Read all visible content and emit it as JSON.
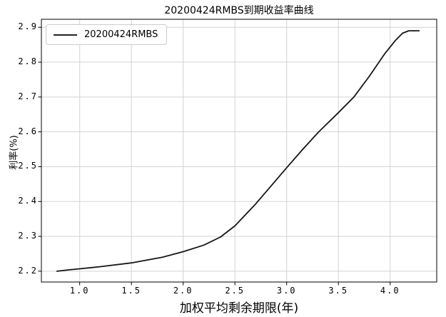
{
  "figure": {
    "background_color": "#ffffff",
    "grid_color": "#d3d3d3",
    "spine_color": "#000000",
    "tick_color": "#000000"
  },
  "chart_data": {
    "type": "line",
    "title": "20200424RMBS到期收益率曲线",
    "xlabel": "加权平均剩余期限(年)",
    "ylabel": "利率(%)",
    "grid": true,
    "legend_position": "upper left",
    "legend": [
      "20200424RMBS"
    ],
    "line_color": "#161616",
    "xlim": [
      0.63,
      4.45
    ],
    "ylim": [
      2.169,
      2.923
    ],
    "xticks": [
      1.0,
      1.5,
      2.0,
      2.5,
      3.0,
      3.5,
      4.0
    ],
    "xtick_labels": [
      "1.0",
      "1.5",
      "2.0",
      "2.5",
      "3.0",
      "3.5",
      "4.0"
    ],
    "yticks": [
      2.2,
      2.3,
      2.4,
      2.5,
      2.6,
      2.7,
      2.8,
      2.9
    ],
    "ytick_labels": [
      "2.2",
      "2.3",
      "2.4",
      "2.5",
      "2.6",
      "2.7",
      "2.8",
      "2.9"
    ],
    "series": [
      {
        "name": "20200424RMBS",
        "x": [
          0.78,
          0.9,
          1.0,
          1.2,
          1.5,
          1.8,
          2.0,
          2.2,
          2.36,
          2.5,
          2.7,
          2.85,
          3.0,
          3.15,
          3.31,
          3.5,
          3.65,
          3.8,
          3.95,
          4.05,
          4.12,
          4.18,
          4.28
        ],
        "y": [
          2.2,
          2.204,
          2.207,
          2.213,
          2.224,
          2.24,
          2.256,
          2.275,
          2.298,
          2.33,
          2.393,
          2.445,
          2.497,
          2.548,
          2.6,
          2.655,
          2.7,
          2.76,
          2.825,
          2.862,
          2.883,
          2.89,
          2.89
        ]
      }
    ]
  }
}
